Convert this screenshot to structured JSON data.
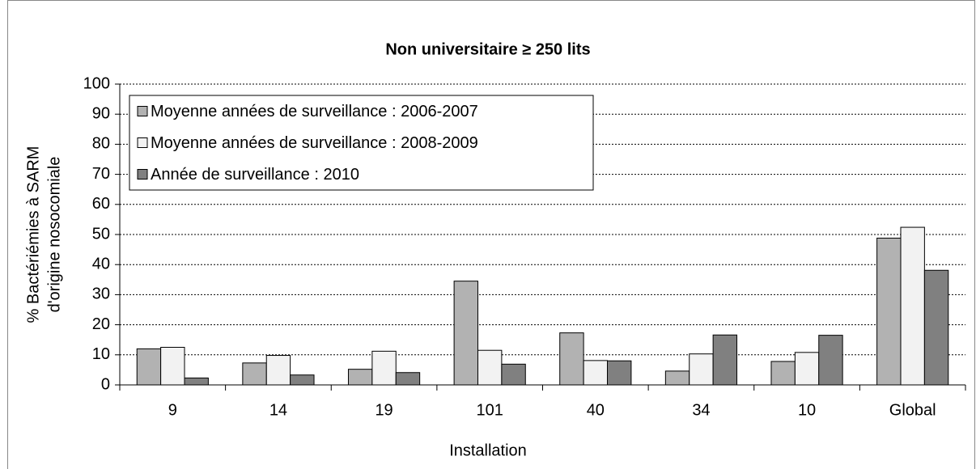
{
  "chart_data": {
    "type": "bar",
    "title": "Non universitaire ≥ 250 lits",
    "xlabel": "Installation",
    "ylabel": [
      "% Bactériémies à SARM",
      "d'origine nosocomiale"
    ],
    "categories": [
      "9",
      "14",
      "19",
      "101",
      "40",
      "34",
      "10",
      "Global"
    ],
    "series": [
      {
        "name": "Moyenne années de surveillance : 2006-2007",
        "color": "#b2b2b2",
        "values": [
          12,
          7.3,
          5.2,
          34.5,
          17.3,
          4.6,
          7.8,
          48.8
        ]
      },
      {
        "name": "Moyenne années de surveillance : 2008-2009",
        "color": "#f2f2f2",
        "values": [
          12.5,
          9.8,
          11.2,
          11.5,
          8.1,
          10.3,
          10.8,
          52.4
        ]
      },
      {
        "name": "Année de surveillance : 2010",
        "color": "#808080",
        "values": [
          2.3,
          3.3,
          4.1,
          6.9,
          8.0,
          16.6,
          16.5,
          38.1
        ]
      }
    ],
    "ylim": [
      0,
      100
    ],
    "yticks": [
      0,
      10,
      20,
      30,
      40,
      50,
      60,
      70,
      80,
      90,
      100
    ],
    "grid": true,
    "legend": "upper left"
  }
}
